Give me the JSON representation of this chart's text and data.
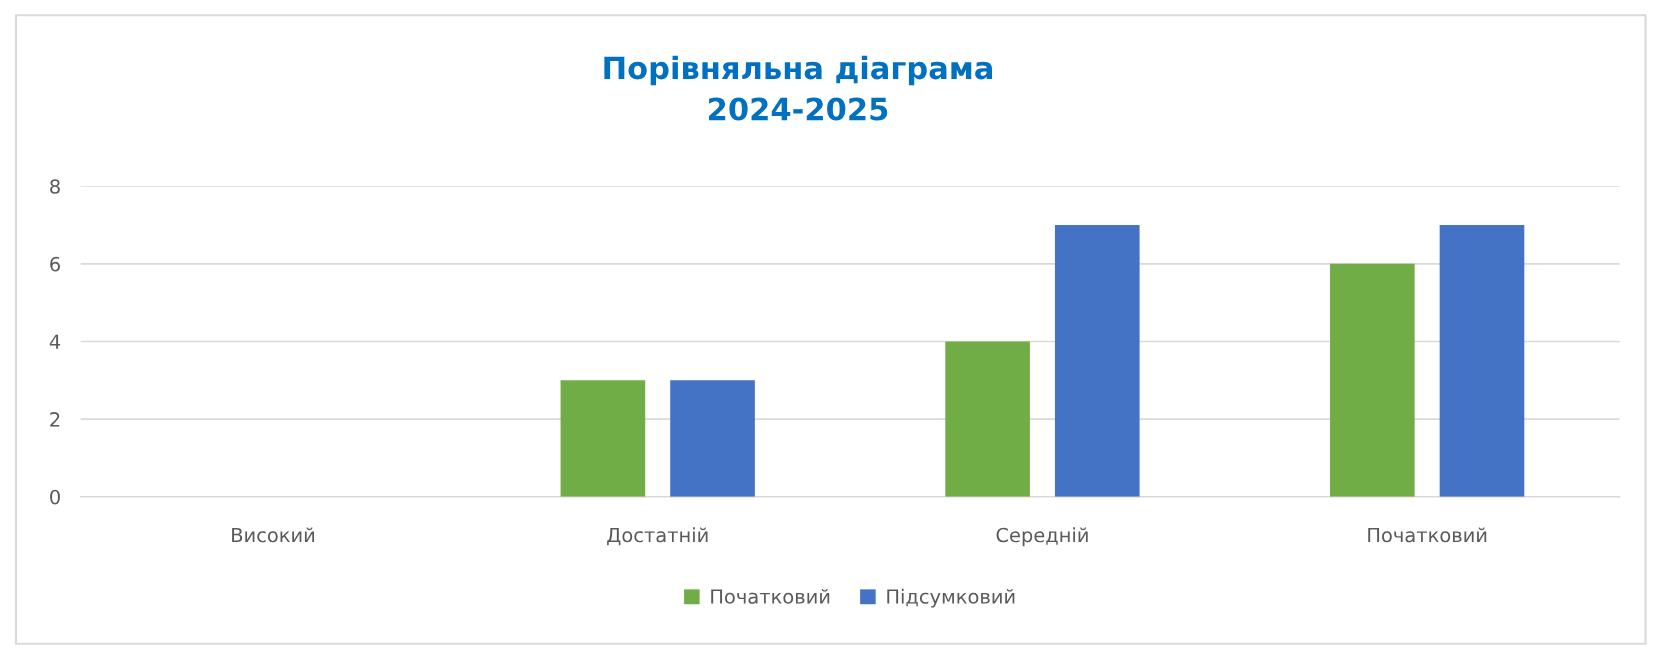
{
  "chart_data": {
    "type": "bar",
    "title": "Порівняльна діаграма\n2024-2025",
    "categories": [
      "Високий",
      "Достатній",
      "Середній",
      "Початковий"
    ],
    "series": [
      {
        "name": "Початковий",
        "color": "#70ad47",
        "values": [
          0,
          3,
          4,
          6
        ]
      },
      {
        "name": "Підсумковий",
        "color": "#4472c4",
        "values": [
          0,
          3,
          7,
          7
        ]
      }
    ],
    "ylim": [
      0,
      8
    ],
    "yticks": [
      0,
      2,
      4,
      6,
      8
    ],
    "grid": "y",
    "legend": "bottom"
  }
}
